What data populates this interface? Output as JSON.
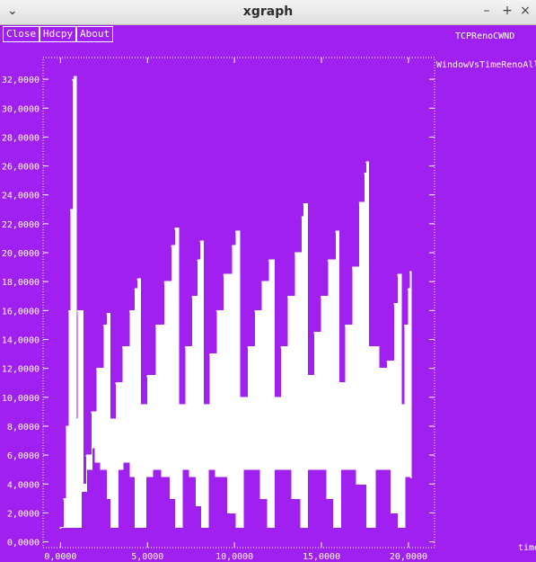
{
  "window": {
    "title": "xgraph",
    "menu_glyph": "⌄",
    "minimize_glyph": "–",
    "maximize_glyph": "+",
    "close_glyph": "×"
  },
  "buttons": {
    "close": "Close",
    "hdcpy": "Hdcpy",
    "about": "About"
  },
  "graph_title": "TCPRenoCWND",
  "colors": {
    "background": "#a020f0",
    "foreground": "#ffffff",
    "titlebar": "#e8e8e8"
  },
  "chart_data": {
    "type": "line",
    "title": "TCPRenoCWND",
    "xlabel": "time",
    "ylabel": "",
    "xlim": [
      -1.0,
      21.5
    ],
    "ylim": [
      -0.4,
      33.5
    ],
    "grid": false,
    "legend_position": "top-right",
    "x_ticks": [
      0,
      5,
      10,
      15,
      20
    ],
    "x_tick_labels": [
      "0,0000",
      "5,0000",
      "10,0000",
      "15,0000",
      "20,0000"
    ],
    "y_ticks": [
      0,
      2,
      4,
      6,
      8,
      10,
      12,
      14,
      16,
      18,
      20,
      22,
      24,
      26,
      28,
      30,
      32
    ],
    "y_tick_labels": [
      "0,0000",
      "2,0000",
      "4,0000",
      "6,0000",
      "8,0000",
      "10,0000",
      "12,0000",
      "14,0000",
      "16,0000",
      "18,0000",
      "20,0000",
      "22,0000",
      "24,0000",
      "26,0000",
      "28,0000",
      "30,0000",
      "32,0000"
    ],
    "series": [
      {
        "name": "WindowVsTimeRenoAll",
        "envelope_upper": [
          [
            0.0,
            1.0
          ],
          [
            0.2,
            3.0
          ],
          [
            0.35,
            8.0
          ],
          [
            0.5,
            16.0
          ],
          [
            0.6,
            23.0
          ],
          [
            0.72,
            32.0
          ],
          [
            0.8,
            32.2
          ],
          [
            0.9,
            8.5
          ],
          [
            1.0,
            16.0
          ],
          [
            1.25,
            16.0
          ],
          [
            1.3,
            4.0
          ],
          [
            1.5,
            6.0
          ],
          [
            1.8,
            9.0
          ],
          [
            2.1,
            12.0
          ],
          [
            2.5,
            15.0
          ],
          [
            2.7,
            15.8
          ],
          [
            2.85,
            8.5
          ],
          [
            3.2,
            11.0
          ],
          [
            3.6,
            13.5
          ],
          [
            4.0,
            16.0
          ],
          [
            4.3,
            17.5
          ],
          [
            4.45,
            18.2
          ],
          [
            4.6,
            9.5
          ],
          [
            5.0,
            11.5
          ],
          [
            5.5,
            15.0
          ],
          [
            6.0,
            18.0
          ],
          [
            6.4,
            20.5
          ],
          [
            6.6,
            21.7
          ],
          [
            6.8,
            9.5
          ],
          [
            7.2,
            13.5
          ],
          [
            7.6,
            17.0
          ],
          [
            7.9,
            19.5
          ],
          [
            8.05,
            20.8
          ],
          [
            8.2,
            9.5
          ],
          [
            8.6,
            13.0
          ],
          [
            9.0,
            16.0
          ],
          [
            9.4,
            18.5
          ],
          [
            9.9,
            20.5
          ],
          [
            10.1,
            21.5
          ],
          [
            10.3,
            10.0
          ],
          [
            10.8,
            13.5
          ],
          [
            11.2,
            16.0
          ],
          [
            11.6,
            18.0
          ],
          [
            12.0,
            19.5
          ],
          [
            12.3,
            10.0
          ],
          [
            12.7,
            13.5
          ],
          [
            13.1,
            17.0
          ],
          [
            13.5,
            20.0
          ],
          [
            13.9,
            22.5
          ],
          [
            14.0,
            23.4
          ],
          [
            14.2,
            11.5
          ],
          [
            14.6,
            14.5
          ],
          [
            15.0,
            17.0
          ],
          [
            15.4,
            19.5
          ],
          [
            15.85,
            21.5
          ],
          [
            16.0,
            11.0
          ],
          [
            16.4,
            15.0
          ],
          [
            16.8,
            19.0
          ],
          [
            17.2,
            23.5
          ],
          [
            17.5,
            25.5
          ],
          [
            17.6,
            26.3
          ],
          [
            17.7,
            13.5
          ],
          [
            18.3,
            12.0
          ],
          [
            18.8,
            12.5
          ],
          [
            19.2,
            16.5
          ],
          [
            19.4,
            18.5
          ],
          [
            19.6,
            9.5
          ],
          [
            19.8,
            15.0
          ],
          [
            20.0,
            17.5
          ],
          [
            20.1,
            18.7
          ],
          [
            20.15,
            4.5
          ]
        ],
        "envelope_lower": [
          [
            0.0,
            1.0
          ],
          [
            0.5,
            1.0
          ],
          [
            0.7,
            1.0
          ],
          [
            0.9,
            1.0
          ],
          [
            1.2,
            1.0
          ],
          [
            1.5,
            3.5
          ],
          [
            1.8,
            5.0
          ],
          [
            2.0,
            6.5
          ],
          [
            2.3,
            5.5
          ],
          [
            2.7,
            5.0
          ],
          [
            2.9,
            3.0
          ],
          [
            3.0,
            1.0
          ],
          [
            3.3,
            1.0
          ],
          [
            3.6,
            5.0
          ],
          [
            4.0,
            5.5
          ],
          [
            4.3,
            4.5
          ],
          [
            4.6,
            1.0
          ],
          [
            4.9,
            1.0
          ],
          [
            5.3,
            4.5
          ],
          [
            5.8,
            5.0
          ],
          [
            6.3,
            4.5
          ],
          [
            6.6,
            3.0
          ],
          [
            6.7,
            1.0
          ],
          [
            7.0,
            1.0
          ],
          [
            7.4,
            5.0
          ],
          [
            7.8,
            4.5
          ],
          [
            8.1,
            2.5
          ],
          [
            8.2,
            1.0
          ],
          [
            8.5,
            1.0
          ],
          [
            8.9,
            5.0
          ],
          [
            9.6,
            4.5
          ],
          [
            10.1,
            2.0
          ],
          [
            10.2,
            1.0
          ],
          [
            10.5,
            1.0
          ],
          [
            10.9,
            5.0
          ],
          [
            11.5,
            5.0
          ],
          [
            11.9,
            3.0
          ],
          [
            12.0,
            1.0
          ],
          [
            12.3,
            1.0
          ],
          [
            12.7,
            5.0
          ],
          [
            13.3,
            5.0
          ],
          [
            13.8,
            3.0
          ],
          [
            13.9,
            1.0
          ],
          [
            14.2,
            1.0
          ],
          [
            14.6,
            5.0
          ],
          [
            15.3,
            5.0
          ],
          [
            15.7,
            3.0
          ],
          [
            15.8,
            1.0
          ],
          [
            16.1,
            1.0
          ],
          [
            16.5,
            5.0
          ],
          [
            17.0,
            5.0
          ],
          [
            17.6,
            4.0
          ],
          [
            17.8,
            1.0
          ],
          [
            18.1,
            1.0
          ],
          [
            18.5,
            5.0
          ],
          [
            19.0,
            5.0
          ],
          [
            19.4,
            2.0
          ],
          [
            19.5,
            1.0
          ],
          [
            19.8,
            1.0
          ],
          [
            20.15,
            4.5
          ]
        ]
      }
    ]
  }
}
